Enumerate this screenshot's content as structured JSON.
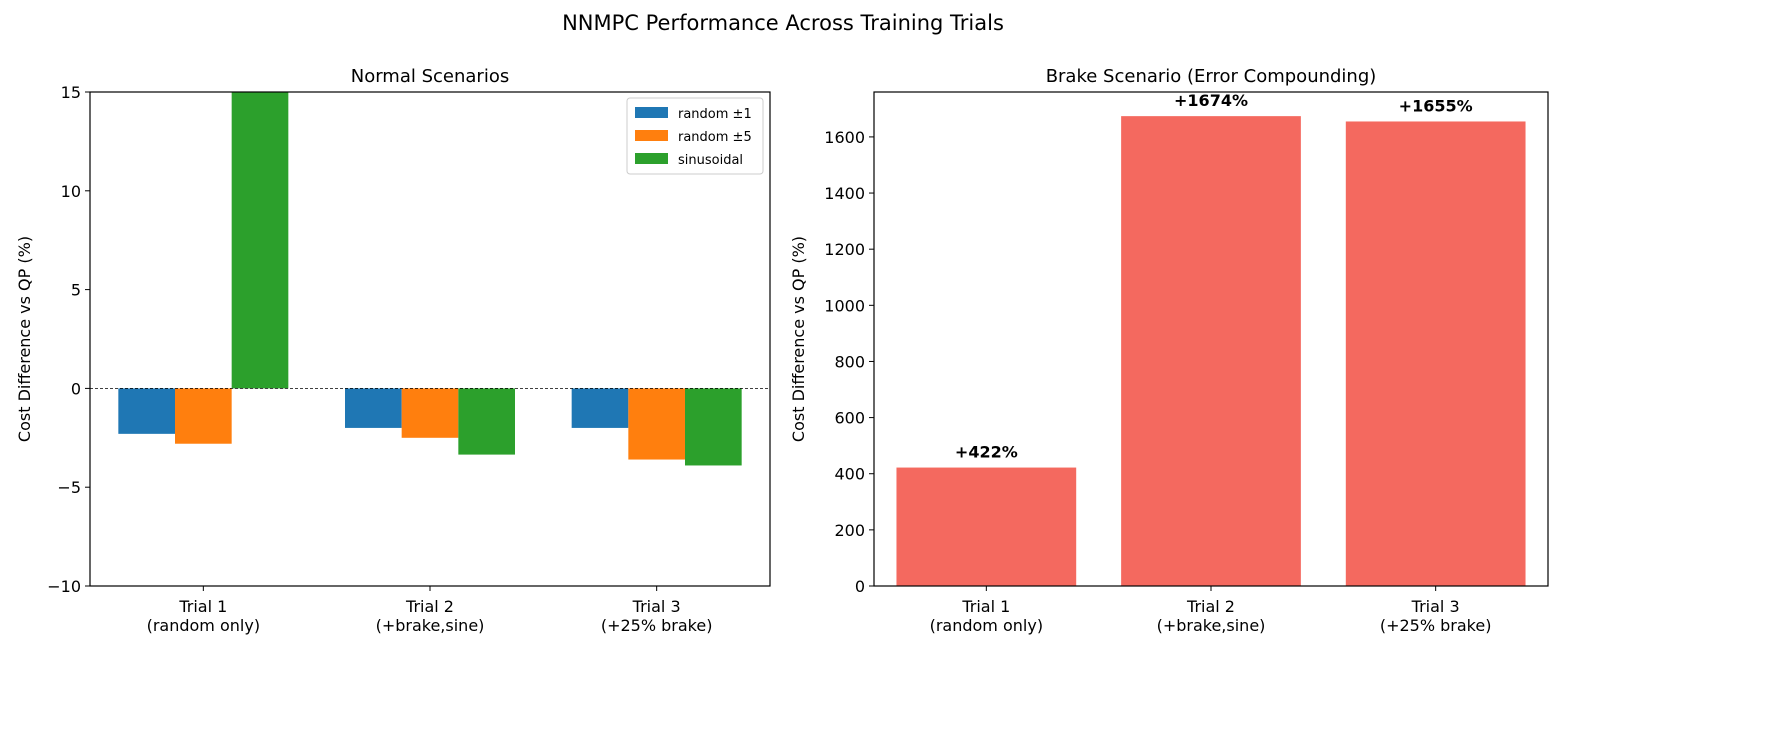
{
  "suptitle": "NNMPC Performance Across Training Trials",
  "chart_data": [
    {
      "type": "bar",
      "title": "Normal Scenarios",
      "xlabel": "",
      "ylabel": "Cost Difference vs QP (%)",
      "ylim": [
        -10,
        15
      ],
      "yticks": [
        -10,
        -5,
        0,
        5,
        10,
        15
      ],
      "categories": [
        "Trial 1\n(random only)",
        "Trial 2\n(+brake,sine)",
        "Trial 3\n(+25% brake)"
      ],
      "series": [
        {
          "name": "random ±1",
          "color": "#1f77b4",
          "values": [
            -2.3,
            -2.0,
            -2.0
          ]
        },
        {
          "name": "random ±5",
          "color": "#ff7f0e",
          "values": [
            -2.8,
            -2.5,
            -3.6
          ]
        },
        {
          "name": "sinusoidal",
          "color": "#2ca02c",
          "values": [
            15,
            -3.35,
            -3.9
          ]
        }
      ],
      "reference_line": 0,
      "legend": "top-right",
      "grid": false
    },
    {
      "type": "bar",
      "title": "Brake Scenario (Error Compounding)",
      "xlabel": "",
      "ylabel": "Cost Difference vs QP (%)",
      "ylim": [
        0,
        1760
      ],
      "yticks": [
        0,
        200,
        400,
        600,
        800,
        1000,
        1200,
        1400,
        1600
      ],
      "categories": [
        "Trial 1\n(random only)",
        "Trial 2\n(+brake,sine)",
        "Trial 3\n(+25% brake)"
      ],
      "values": [
        422,
        1674,
        1655
      ],
      "data_labels": [
        "+422%",
        "+1674%",
        "+1655%"
      ],
      "color": "#f4695f",
      "grid": false
    }
  ]
}
